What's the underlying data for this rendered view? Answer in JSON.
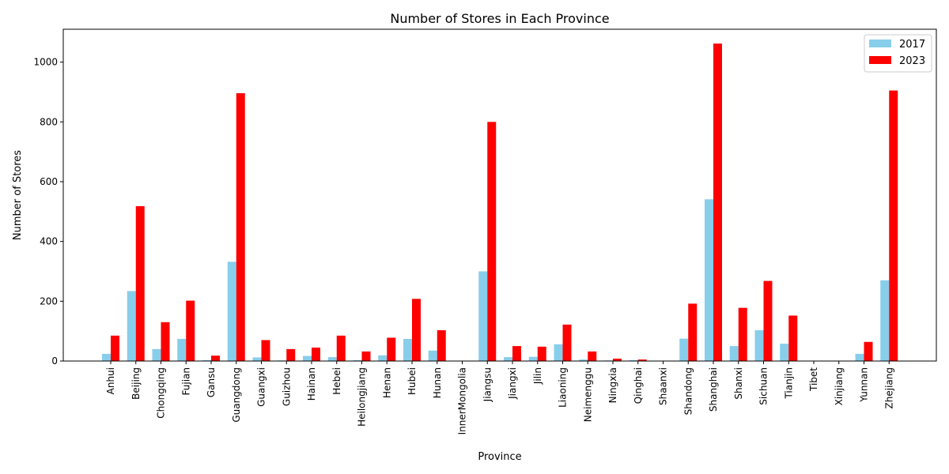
{
  "chart_data": {
    "type": "bar",
    "title": "Number of Stores in Each Province",
    "xlabel": "Province",
    "ylabel": "Number of Stores",
    "ylim": [
      0,
      1110
    ],
    "yticks": [
      0,
      200,
      400,
      600,
      800,
      1000
    ],
    "grid": false,
    "legend_position": "top-right",
    "categories": [
      "Anhui",
      "Beijing",
      "Chongqing",
      "Fujian",
      "Gansu",
      "Guangdong",
      "Guangxi",
      "Guizhou",
      "Hainan",
      "Hebei",
      "Heilongjiang",
      "Henan",
      "Hubei",
      "Hunan",
      "InnerMongolia",
      "Jiangsu",
      "Jiangxi",
      "Jilin",
      "Liaoning",
      "Neimenggu",
      "Ningxia",
      "Qinghai",
      "Shaanxi",
      "Shandong",
      "Shanghai",
      "Shanxi",
      "Sichuan",
      "Tianjin",
      "Tibet",
      "Xinjiang",
      "Yunnan",
      "Zhejiang"
    ],
    "series": [
      {
        "name": "2017",
        "color": "#87ceeb",
        "values": [
          24,
          234,
          40,
          74,
          3,
          332,
          12,
          2,
          17,
          13,
          3,
          19,
          74,
          35,
          0,
          300,
          13,
          14,
          56,
          5,
          2,
          3,
          0,
          75,
          541,
          50,
          103,
          58,
          0,
          0,
          24,
          270
        ]
      },
      {
        "name": "2023",
        "color": "#ff0000",
        "values": [
          85,
          518,
          130,
          202,
          18,
          896,
          70,
          40,
          45,
          85,
          32,
          78,
          208,
          103,
          0,
          800,
          50,
          48,
          122,
          32,
          8,
          5,
          0,
          192,
          1062,
          178,
          268,
          152,
          0,
          0,
          64,
          905
        ]
      }
    ]
  }
}
